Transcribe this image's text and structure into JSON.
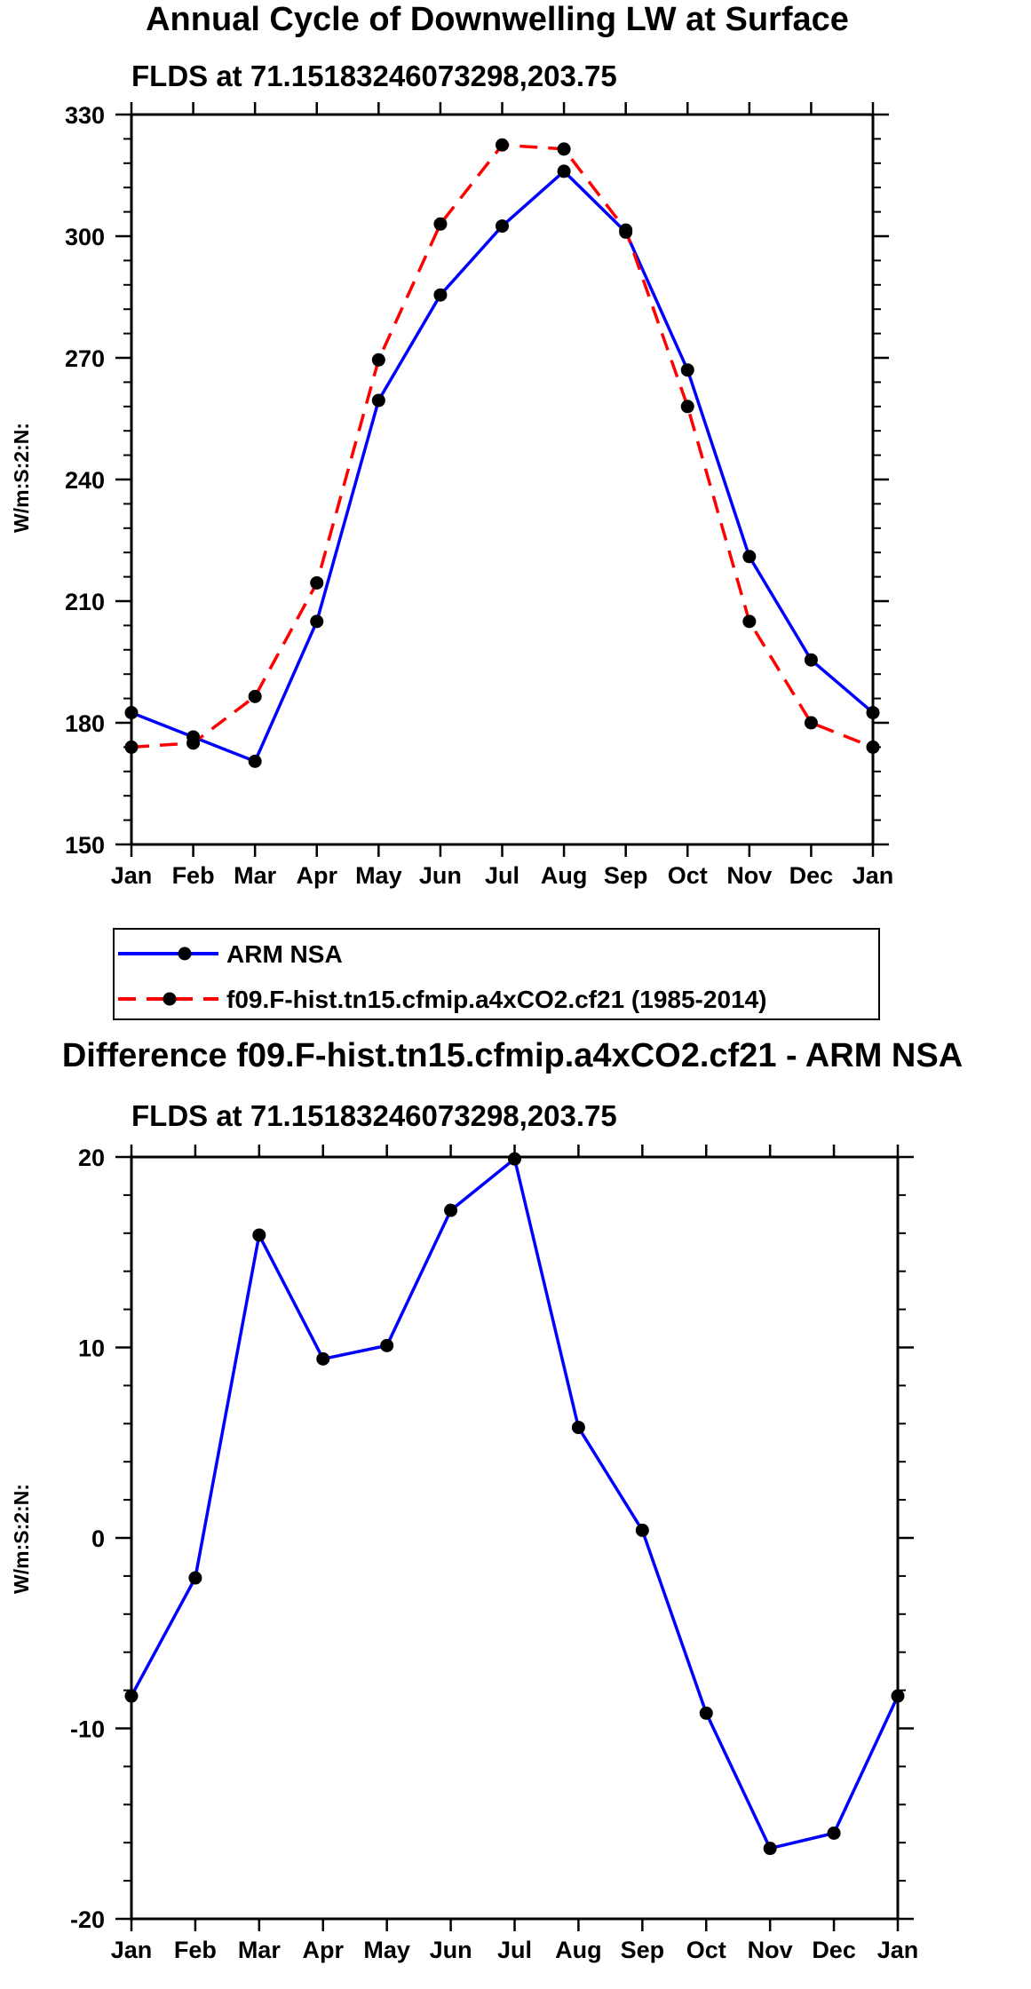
{
  "colors": {
    "background": "#ffffff",
    "axis": "#000000",
    "obs_line": "#0000ff",
    "model_line": "#ff0000",
    "marker": "#000000"
  },
  "chart_data": [
    {
      "type": "line",
      "title": "Annual Cycle of Downwelling LW at Surface",
      "subtitle": "FLDS at 71.15183246073298,203.75",
      "xlabel": "",
      "ylabel": "W/m:S:2:N:",
      "categories": [
        "Jan",
        "Feb",
        "Mar",
        "Apr",
        "May",
        "Jun",
        "Jul",
        "Aug",
        "Sep",
        "Oct",
        "Nov",
        "Dec",
        "Jan"
      ],
      "ylim": [
        150,
        330
      ],
      "yticks": [
        150,
        180,
        210,
        240,
        270,
        300,
        330
      ],
      "ytick_labels": [
        "150",
        "180",
        "210",
        "240",
        "270",
        "300",
        "330"
      ],
      "grid": false,
      "legend_position": "below",
      "series": [
        {
          "name": "ARM NSA",
          "style": "solid",
          "color": "#0000ff",
          "values": [
            182.5,
            176.5,
            170.5,
            205,
            259.5,
            285.5,
            302.5,
            316,
            301,
            267,
            221,
            195.5,
            182.5
          ]
        },
        {
          "name": "f09.F-hist.tn15.cfmip.a4xCO2.cf21 (1985-2014)",
          "style": "dashed",
          "color": "#ff0000",
          "values": [
            174,
            175,
            186.5,
            214.5,
            269.5,
            303,
            322.5,
            321.5,
            301.5,
            258,
            205,
            180,
            174
          ]
        }
      ]
    },
    {
      "type": "line",
      "title": "Difference f09.F-hist.tn15.cfmip.a4xCO2.cf21 - ARM NSA",
      "subtitle": "FLDS at 71.15183246073298,203.75",
      "xlabel": "",
      "ylabel": "W/m:S:2:N:",
      "categories": [
        "Jan",
        "Feb",
        "Mar",
        "Apr",
        "May",
        "Jun",
        "Jul",
        "Aug",
        "Sep",
        "Oct",
        "Nov",
        "Dec",
        "Jan"
      ],
      "ylim": [
        -20,
        20
      ],
      "yticks": [
        -20,
        -10,
        0,
        10,
        20
      ],
      "ytick_labels": [
        "-20",
        "-10",
        "0",
        "10",
        "20"
      ],
      "grid": false,
      "series": [
        {
          "name": "Difference",
          "style": "solid",
          "color": "#0000ff",
          "values": [
            -8.3,
            -2.1,
            15.9,
            9.4,
            10.1,
            17.2,
            19.9,
            5.8,
            0.4,
            -9.2,
            -16.3,
            -15.5,
            -8.3
          ]
        }
      ]
    }
  ]
}
